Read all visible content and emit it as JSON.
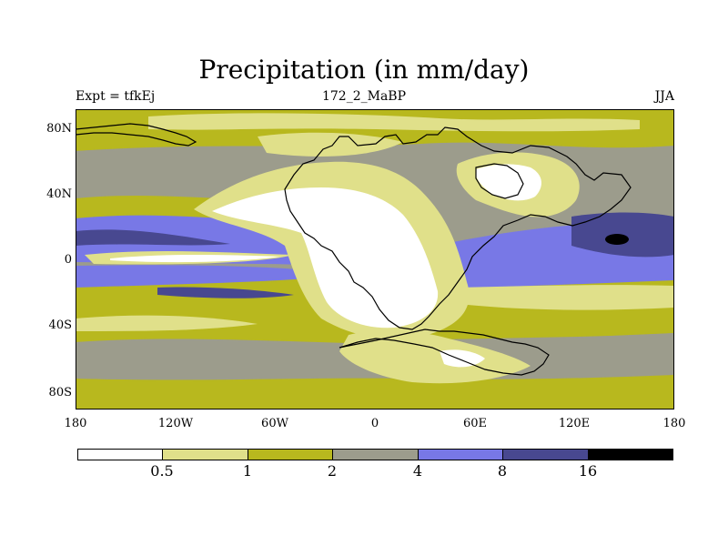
{
  "title": "Precipitation (in mm/day)",
  "subtitle_left": "Expt = tfkEj",
  "subtitle_center": "172_2_MaBP",
  "subtitle_right": "JJA",
  "y_ticks": [
    "80N",
    "40N",
    "0",
    "40S",
    "80S"
  ],
  "x_ticks": [
    "180",
    "120W",
    "60W",
    "0",
    "60E",
    "120E",
    "180"
  ],
  "colorbar": {
    "levels": [
      "0.5",
      "1",
      "2",
      "4",
      "8",
      "16"
    ],
    "colors": [
      "#ffffff",
      "#e0e08a",
      "#b8b81e",
      "#9c9c8c",
      "#7878e6",
      "#484890",
      "#000000"
    ]
  },
  "chart_data": {
    "type": "heatmap",
    "title": "Precipitation (in mm/day)",
    "xlim": [
      -180,
      180
    ],
    "ylim": [
      -90,
      90
    ],
    "x_ticks": [
      -180,
      -120,
      -60,
      0,
      60,
      120,
      180
    ],
    "y_ticks": [
      80,
      40,
      0,
      -40,
      -80
    ],
    "contour_levels": [
      0.5,
      1,
      2,
      4,
      8,
      16
    ],
    "units": "mm/day",
    "season": "JJA",
    "experiment": "tfkEj",
    "period": "172_2_MaBP"
  }
}
